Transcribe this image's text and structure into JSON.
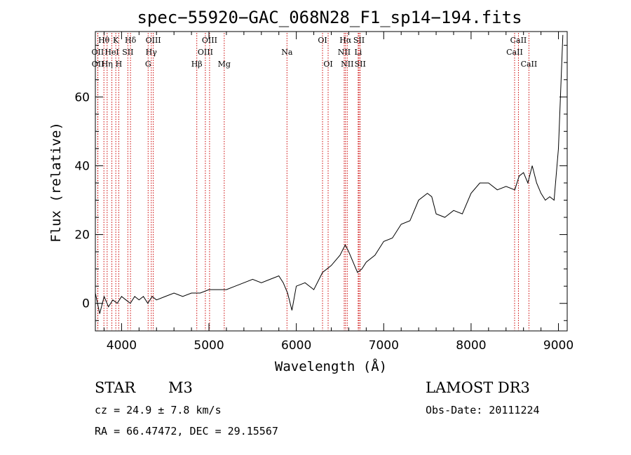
{
  "chart_data": {
    "type": "line",
    "title": "spec−55920−GAC_068N28_F1_sp14−194.fits",
    "xlabel": "Wavelength (Å)",
    "ylabel": "Flux (relative)",
    "xlim": [
      3700,
      9100
    ],
    "ylim": [
      -8,
      79
    ],
    "x_ticks": [
      4000,
      5000,
      6000,
      7000,
      8000,
      9000
    ],
    "y_ticks": [
      0,
      20,
      40,
      60
    ],
    "series": [
      {
        "name": "flux",
        "points": [
          [
            3700,
            3
          ],
          [
            3750,
            -3
          ],
          [
            3800,
            2
          ],
          [
            3850,
            -1
          ],
          [
            3900,
            1
          ],
          [
            3950,
            0
          ],
          [
            4000,
            2
          ],
          [
            4050,
            1
          ],
          [
            4100,
            0
          ],
          [
            4150,
            2
          ],
          [
            4200,
            1
          ],
          [
            4250,
            2
          ],
          [
            4300,
            0
          ],
          [
            4350,
            2
          ],
          [
            4400,
            1
          ],
          [
            4500,
            2
          ],
          [
            4600,
            3
          ],
          [
            4700,
            2
          ],
          [
            4800,
            3
          ],
          [
            4900,
            3
          ],
          [
            5000,
            4
          ],
          [
            5100,
            4
          ],
          [
            5200,
            4
          ],
          [
            5300,
            5
          ],
          [
            5400,
            6
          ],
          [
            5500,
            7
          ],
          [
            5600,
            6
          ],
          [
            5700,
            7
          ],
          [
            5800,
            8
          ],
          [
            5850,
            6
          ],
          [
            5900,
            3
          ],
          [
            5950,
            -2
          ],
          [
            6000,
            5
          ],
          [
            6100,
            6
          ],
          [
            6200,
            4
          ],
          [
            6300,
            9
          ],
          [
            6400,
            11
          ],
          [
            6500,
            14
          ],
          [
            6560,
            17
          ],
          [
            6600,
            15
          ],
          [
            6700,
            9
          ],
          [
            6750,
            10
          ],
          [
            6800,
            12
          ],
          [
            6900,
            14
          ],
          [
            7000,
            18
          ],
          [
            7100,
            19
          ],
          [
            7200,
            23
          ],
          [
            7300,
            24
          ],
          [
            7400,
            30
          ],
          [
            7500,
            32
          ],
          [
            7550,
            31
          ],
          [
            7600,
            26
          ],
          [
            7700,
            25
          ],
          [
            7800,
            27
          ],
          [
            7900,
            26
          ],
          [
            8000,
            32
          ],
          [
            8100,
            35
          ],
          [
            8200,
            35
          ],
          [
            8300,
            33
          ],
          [
            8400,
            34
          ],
          [
            8500,
            33
          ],
          [
            8550,
            37
          ],
          [
            8600,
            38
          ],
          [
            8650,
            35
          ],
          [
            8700,
            40
          ],
          [
            8750,
            35
          ],
          [
            8800,
            32
          ],
          [
            8850,
            30
          ],
          [
            8900,
            31
          ],
          [
            8950,
            30
          ],
          [
            9000,
            45
          ],
          [
            9050,
            78
          ]
        ]
      }
    ],
    "line_annotations": [
      {
        "label": "Hθ",
        "wave": 3798,
        "row": 1
      },
      {
        "label": "K",
        "wave": 3934,
        "row": 1
      },
      {
        "label": "Hδ",
        "wave": 4102,
        "row": 1
      },
      {
        "label": "OIII",
        "wave": 4363,
        "row": 1
      },
      {
        "label": "OIII",
        "wave": 5007,
        "row": 1
      },
      {
        "label": "OI",
        "wave": 6300,
        "row": 1
      },
      {
        "label": "Hα",
        "wave": 6563,
        "row": 1
      },
      {
        "label": "SII",
        "wave": 6717,
        "row": 1
      },
      {
        "label": "CaII",
        "wave": 8542,
        "row": 1
      },
      {
        "label": "OII",
        "wave": 3727,
        "row": 2
      },
      {
        "label": "HeI",
        "wave": 3889,
        "row": 2
      },
      {
        "label": "SII",
        "wave": 4072,
        "row": 2
      },
      {
        "label": "Hγ",
        "wave": 4340,
        "row": 2
      },
      {
        "label": "OIII",
        "wave": 4959,
        "row": 2
      },
      {
        "label": "Na",
        "wave": 5893,
        "row": 2
      },
      {
        "label": "NII",
        "wave": 6548,
        "row": 2
      },
      {
        "label": "Li",
        "wave": 6708,
        "row": 2
      },
      {
        "label": "CaII",
        "wave": 8498,
        "row": 2
      },
      {
        "label": "OII",
        "wave": 3729,
        "row": 3
      },
      {
        "label": "Hη",
        "wave": 3835,
        "row": 3
      },
      {
        "label": "H",
        "wave": 3968,
        "row": 3
      },
      {
        "label": "G",
        "wave": 4304,
        "row": 3
      },
      {
        "label": "Hβ",
        "wave": 4861,
        "row": 3
      },
      {
        "label": "Mg",
        "wave": 5175,
        "row": 3
      },
      {
        "label": "OI",
        "wave": 6364,
        "row": 3
      },
      {
        "label": "NII",
        "wave": 6583,
        "row": 3
      },
      {
        "label": "SII",
        "wave": 6731,
        "row": 3
      },
      {
        "label": "CaII",
        "wave": 8662,
        "row": 3
      }
    ]
  },
  "info": {
    "object_class": "STAR",
    "subclass": "M3",
    "survey": "LAMOST DR3",
    "cz": "cz =  24.9 ±  7.8 km/s",
    "obs_date": "Obs-Date: 20111224",
    "coords": "RA =  66.47472, DEC =  29.15567"
  },
  "colors": {
    "line_marker": "#cc0000",
    "spectrum": "#000000",
    "axes": "#000000"
  }
}
